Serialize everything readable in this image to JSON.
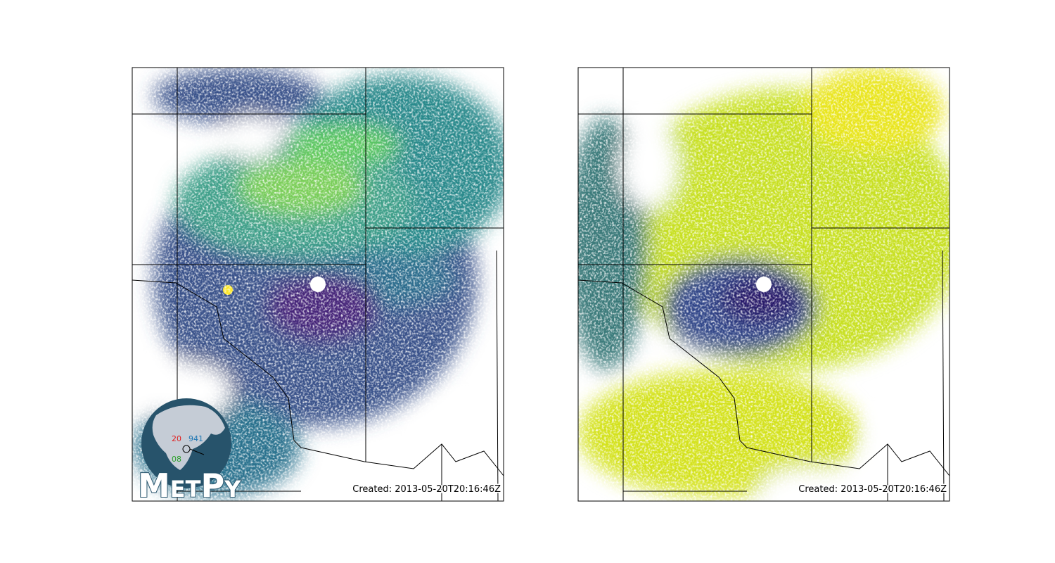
{
  "panels": [
    {
      "timestamp": "Created: 2013-05-20T20:16:46Z"
    },
    {
      "timestamp": "Created: 2013-05-20T20:16:46Z"
    }
  ],
  "logo": {
    "temperature": "20",
    "pressure": "941",
    "dewpoint": "08",
    "name": "MetPy"
  }
}
